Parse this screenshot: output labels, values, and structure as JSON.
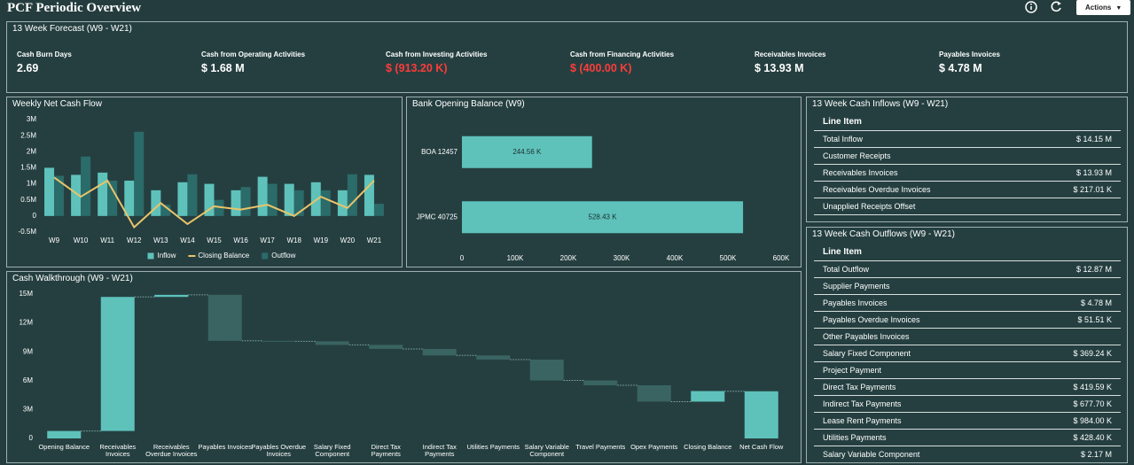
{
  "header": {
    "title": "PCF Periodic Overview",
    "actions": "Actions"
  },
  "forecast": {
    "title": "13 Week Forecast (W9 - W21)",
    "kpis": [
      {
        "label": "Cash Burn Days",
        "value": "2.69"
      },
      {
        "label": "Cash from Operating Activities",
        "value": "$ 1.68 M"
      },
      {
        "label": "Cash from Investing Activities",
        "value": "$ (913.20 K)",
        "color": "#ff3b3b"
      },
      {
        "label": "Cash from Financing Activities",
        "value": "$ (400.00 K)",
        "color": "#ff3b3b"
      },
      {
        "label": "Receivables Invoices",
        "value": "$ 13.93 M"
      },
      {
        "label": "Payables Invoices",
        "value": "$ 4.78 M"
      }
    ]
  },
  "chart_data": [
    {
      "type": "bar",
      "title": "Weekly Net Cash Flow",
      "categories": [
        "W9",
        "W10",
        "W11",
        "W12",
        "W13",
        "W14",
        "W15",
        "W16",
        "W17",
        "W18",
        "W19",
        "W20",
        "W21"
      ],
      "series": [
        {
          "name": "Inflow",
          "type": "bar",
          "color": "#5ec2bb",
          "values": [
            1500000,
            1280000,
            1350000,
            1100000,
            800000,
            1050000,
            1000000,
            800000,
            1220000,
            1000000,
            1050000,
            800000,
            1280000
          ]
        },
        {
          "name": "Closing Balance",
          "type": "line",
          "color": "#e9c46a",
          "values": [
            1200000,
            600000,
            1100000,
            -350000,
            400000,
            -250000,
            300000,
            200000,
            350000,
            0,
            600000,
            250000,
            1100000
          ]
        },
        {
          "name": "Outflow",
          "type": "bar",
          "color": "#2b6b69",
          "values": [
            1250000,
            1850000,
            1100000,
            2620000,
            350000,
            1300000,
            500000,
            900000,
            1000000,
            800000,
            800000,
            1300000,
            380000
          ]
        }
      ],
      "ylim": [
        -500000,
        3000000
      ],
      "yticks": [
        {
          "value": -500000,
          "label": "-0.5M"
        },
        0,
        {
          "value": 500000,
          "label": "0.5M"
        },
        {
          "value": 1000000,
          "label": "1M"
        },
        {
          "value": 1500000,
          "label": "1.5M"
        },
        {
          "value": 2000000,
          "label": "2M"
        },
        {
          "value": 2500000,
          "label": "2.5M"
        },
        {
          "value": 3000000,
          "label": "3M"
        }
      ],
      "grid": false,
      "legend": "bottom"
    },
    {
      "type": "bar",
      "orientation": "horizontal",
      "title": "Bank Opening Balance (W9)",
      "categories": [
        "BOA 12457",
        "JPMC 40725"
      ],
      "values": [
        244560,
        528430
      ],
      "value_labels": [
        "244.56 K",
        "528.43 K"
      ],
      "color": "#5ec2bb",
      "xlim": [
        0,
        600000
      ],
      "xticks": [
        0,
        {
          "value": 100000,
          "label": "100K"
        },
        {
          "value": 200000,
          "label": "200K"
        },
        {
          "value": 300000,
          "label": "300K"
        },
        {
          "value": 400000,
          "label": "400K"
        },
        {
          "value": 500000,
          "label": "500K"
        },
        {
          "value": 600000,
          "label": "600K"
        }
      ],
      "grid": false
    },
    {
      "type": "waterfall",
      "title": "Cash Walkthrough (W9 - W21)",
      "categories": [
        "Opening Balance",
        "Receivables Invoices",
        "Receivables Overdue Invoices",
        "Payables Invoices",
        "Payables Overdue Invoices",
        "Salary Fixed Component",
        "Direct Tax Payments",
        "Indirect Tax Payments",
        "Utilities Payments",
        "Salary Variable Component",
        "Travel Payments",
        "Opex Payments",
        "Closing Balance",
        "Net Cash Flow"
      ],
      "values": [
        772990,
        13930000,
        217010,
        -4780000,
        -51510,
        -369240,
        -419590,
        -677700,
        -428400,
        -2170000,
        -500000,
        -1700000,
        1100000,
        4900000
      ],
      "measure": [
        "absolute",
        "relative",
        "relative",
        "relative",
        "relative",
        "relative",
        "relative",
        "relative",
        "relative",
        "relative",
        "relative",
        "relative",
        "relative",
        "total"
      ],
      "increase_color": "#5ec2bb",
      "decrease_color": "#3a6462",
      "ylim": [
        0,
        15000000
      ],
      "yticks": [
        0,
        {
          "value": 3000000,
          "label": "3M"
        },
        {
          "value": 6000000,
          "label": "6M"
        },
        {
          "value": 9000000,
          "label": "9M"
        },
        {
          "value": 12000000,
          "label": "12M"
        },
        {
          "value": 15000000,
          "label": "15M"
        }
      ],
      "grid": false
    }
  ],
  "inflows": {
    "title": "13 Week Cash Inflows (W9 - W21)",
    "header": "Line Item",
    "rows": [
      {
        "label": "Total Inflow",
        "value": "$ 14.15 M"
      },
      {
        "label": "Customer Receipts"
      },
      {
        "label": "Receivables Invoices",
        "value": "$ 13.93 M"
      },
      {
        "label": "Receivables Overdue Invoices",
        "value": "$ 217.01 K"
      },
      {
        "label": "Unapplied Receipts Offset"
      }
    ]
  },
  "outflows": {
    "title": "13 Week Cash Outflows (W9 - W21)",
    "header": "Line Item",
    "rows": [
      {
        "label": "Total Outflow",
        "value": "$ 12.87 M"
      },
      {
        "label": "Supplier Payments"
      },
      {
        "label": "Payables Invoices",
        "value": "$ 4.78 M"
      },
      {
        "label": "Payables Overdue Invoices",
        "value": "$ 51.51 K"
      },
      {
        "label": "Other Payables Invoices"
      },
      {
        "label": "Salary Fixed Component",
        "value": "$ 369.24 K"
      },
      {
        "label": "Project Payment"
      },
      {
        "label": "Direct Tax Payments",
        "value": "$ 419.59 K"
      },
      {
        "label": "Indirect Tax Payments",
        "value": "$ 677.70 K"
      },
      {
        "label": "Lease Rent Payments",
        "value": "$ 984.00 K"
      },
      {
        "label": "Utilities Payments",
        "value": "$ 428.40 K"
      },
      {
        "label": "Salary Variable Component",
        "value": "$ 2.17 M"
      }
    ]
  }
}
